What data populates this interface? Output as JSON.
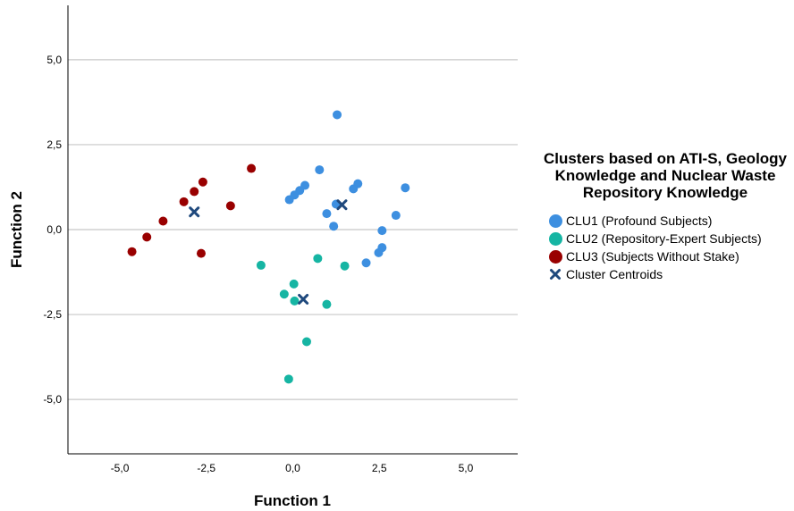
{
  "chart_data": {
    "type": "scatter",
    "xlabel": "Function 1",
    "ylabel": "Function 2",
    "xlim": [
      -6.5,
      6.5
    ],
    "ylim": [
      -6.6,
      6.6
    ],
    "x_ticks": [
      -5,
      -2.5,
      0,
      2.5,
      5
    ],
    "x_tick_labels": [
      "-5,0",
      "-2,5",
      "0,0",
      "2,5",
      "5,0"
    ],
    "y_ticks": [
      5,
      2.5,
      0,
      -2.5,
      -5
    ],
    "y_tick_labels": [
      "5,0",
      "2,5",
      "0,0",
      "-2,5",
      "-5,0"
    ],
    "grid": "horizontal",
    "legend": {
      "title": "Clusters based on ATI-S, Geology Knowledge and Nuclear Waste Repository Knowledge",
      "placement": "right"
    },
    "series": [
      {
        "name": "CLU1 (Profound Subjects)",
        "color": "#3d8fe0",
        "marker": "circle",
        "points": [
          [
            1.28,
            3.38
          ],
          [
            0.77,
            1.76
          ],
          [
            1.88,
            1.35
          ],
          [
            1.75,
            1.2
          ],
          [
            3.25,
            1.23
          ],
          [
            0.35,
            1.3
          ],
          [
            0.2,
            1.15
          ],
          [
            0.05,
            1.02
          ],
          [
            -0.1,
            0.88
          ],
          [
            1.25,
            0.75
          ],
          [
            0.98,
            0.47
          ],
          [
            2.98,
            0.42
          ],
          [
            1.18,
            0.1
          ],
          [
            2.58,
            -0.03
          ],
          [
            2.58,
            -0.53
          ],
          [
            2.48,
            -0.68
          ],
          [
            2.12,
            -0.98
          ]
        ]
      },
      {
        "name": "CLU2 (Repository-Expert Subjects)",
        "color": "#16b5a3",
        "marker": "circle",
        "points": [
          [
            -0.92,
            -1.05
          ],
          [
            0.72,
            -0.85
          ],
          [
            1.5,
            -1.07
          ],
          [
            0.03,
            -1.6
          ],
          [
            -0.25,
            -1.9
          ],
          [
            0.05,
            -2.1
          ],
          [
            0.98,
            -2.2
          ],
          [
            0.4,
            -3.3
          ],
          [
            -0.12,
            -4.4
          ]
        ]
      },
      {
        "name": "CLU3 (Subjects Without Stake)",
        "color": "#990000",
        "marker": "circle",
        "points": [
          [
            -1.2,
            1.8
          ],
          [
            -2.6,
            1.4
          ],
          [
            -2.85,
            1.12
          ],
          [
            -3.15,
            0.82
          ],
          [
            -1.8,
            0.7
          ],
          [
            -3.75,
            0.25
          ],
          [
            -4.22,
            -0.22
          ],
          [
            -4.65,
            -0.65
          ],
          [
            -2.65,
            -0.7
          ]
        ]
      },
      {
        "name": "Cluster Centroids",
        "color": "#1f497d",
        "marker": "x",
        "points": [
          [
            -2.85,
            0.52
          ],
          [
            1.42,
            0.73
          ],
          [
            0.3,
            -2.05
          ]
        ]
      }
    ]
  }
}
